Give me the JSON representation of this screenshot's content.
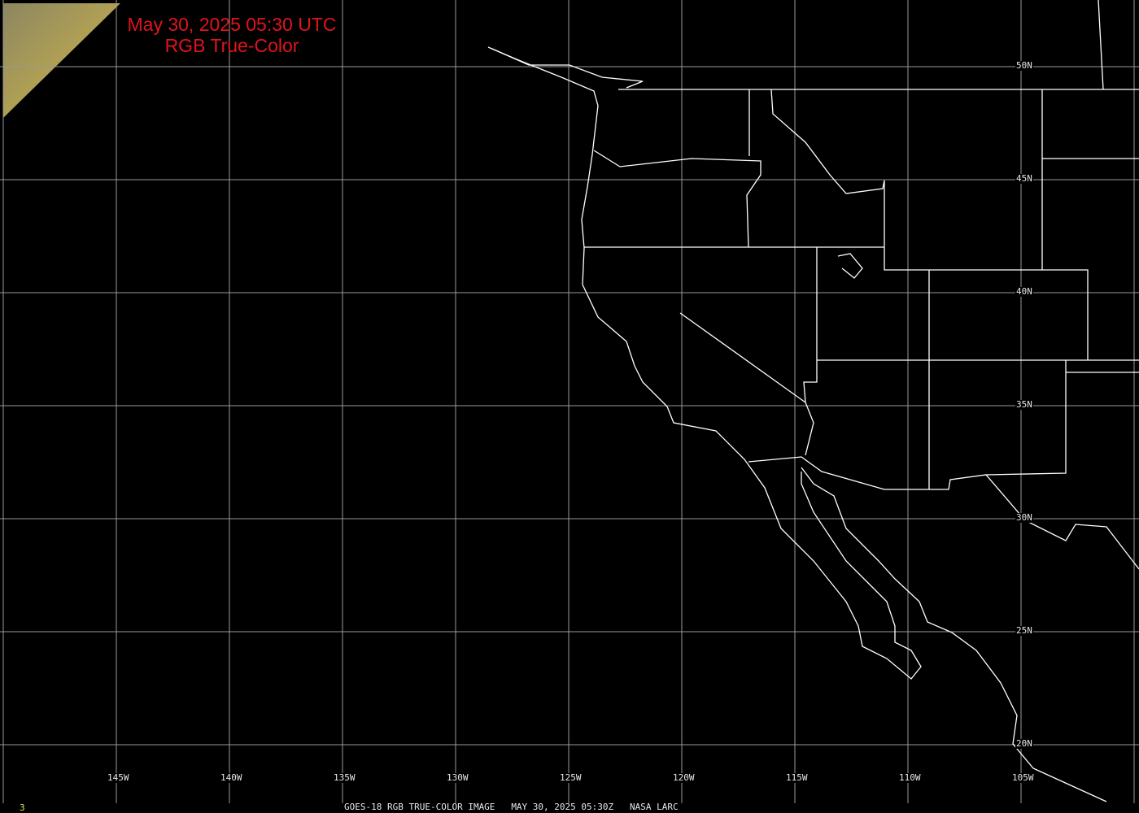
{
  "title": {
    "line1": "May 30, 2025 05:30 UTC",
    "line2": "RGB True-Color"
  },
  "latitude_labels": [
    "50N",
    "45N",
    "40N",
    "35N",
    "30N",
    "25N",
    "20N"
  ],
  "longitude_labels": [
    "145W",
    "140W",
    "135W",
    "130W",
    "125W",
    "120W",
    "115W",
    "110W",
    "105W"
  ],
  "footer": {
    "satellite": "GOES-18 RGB TRUE-COLOR IMAGE",
    "datetime": "MAY 30, 2025 05:30Z",
    "credit": "NASA LARC"
  },
  "corner_number": "3",
  "colors": {
    "title": "#e0141c",
    "grid": "#9a9a9a",
    "boundaries": "#ffffff",
    "background": "#000000",
    "imagery": "#b8a860"
  }
}
